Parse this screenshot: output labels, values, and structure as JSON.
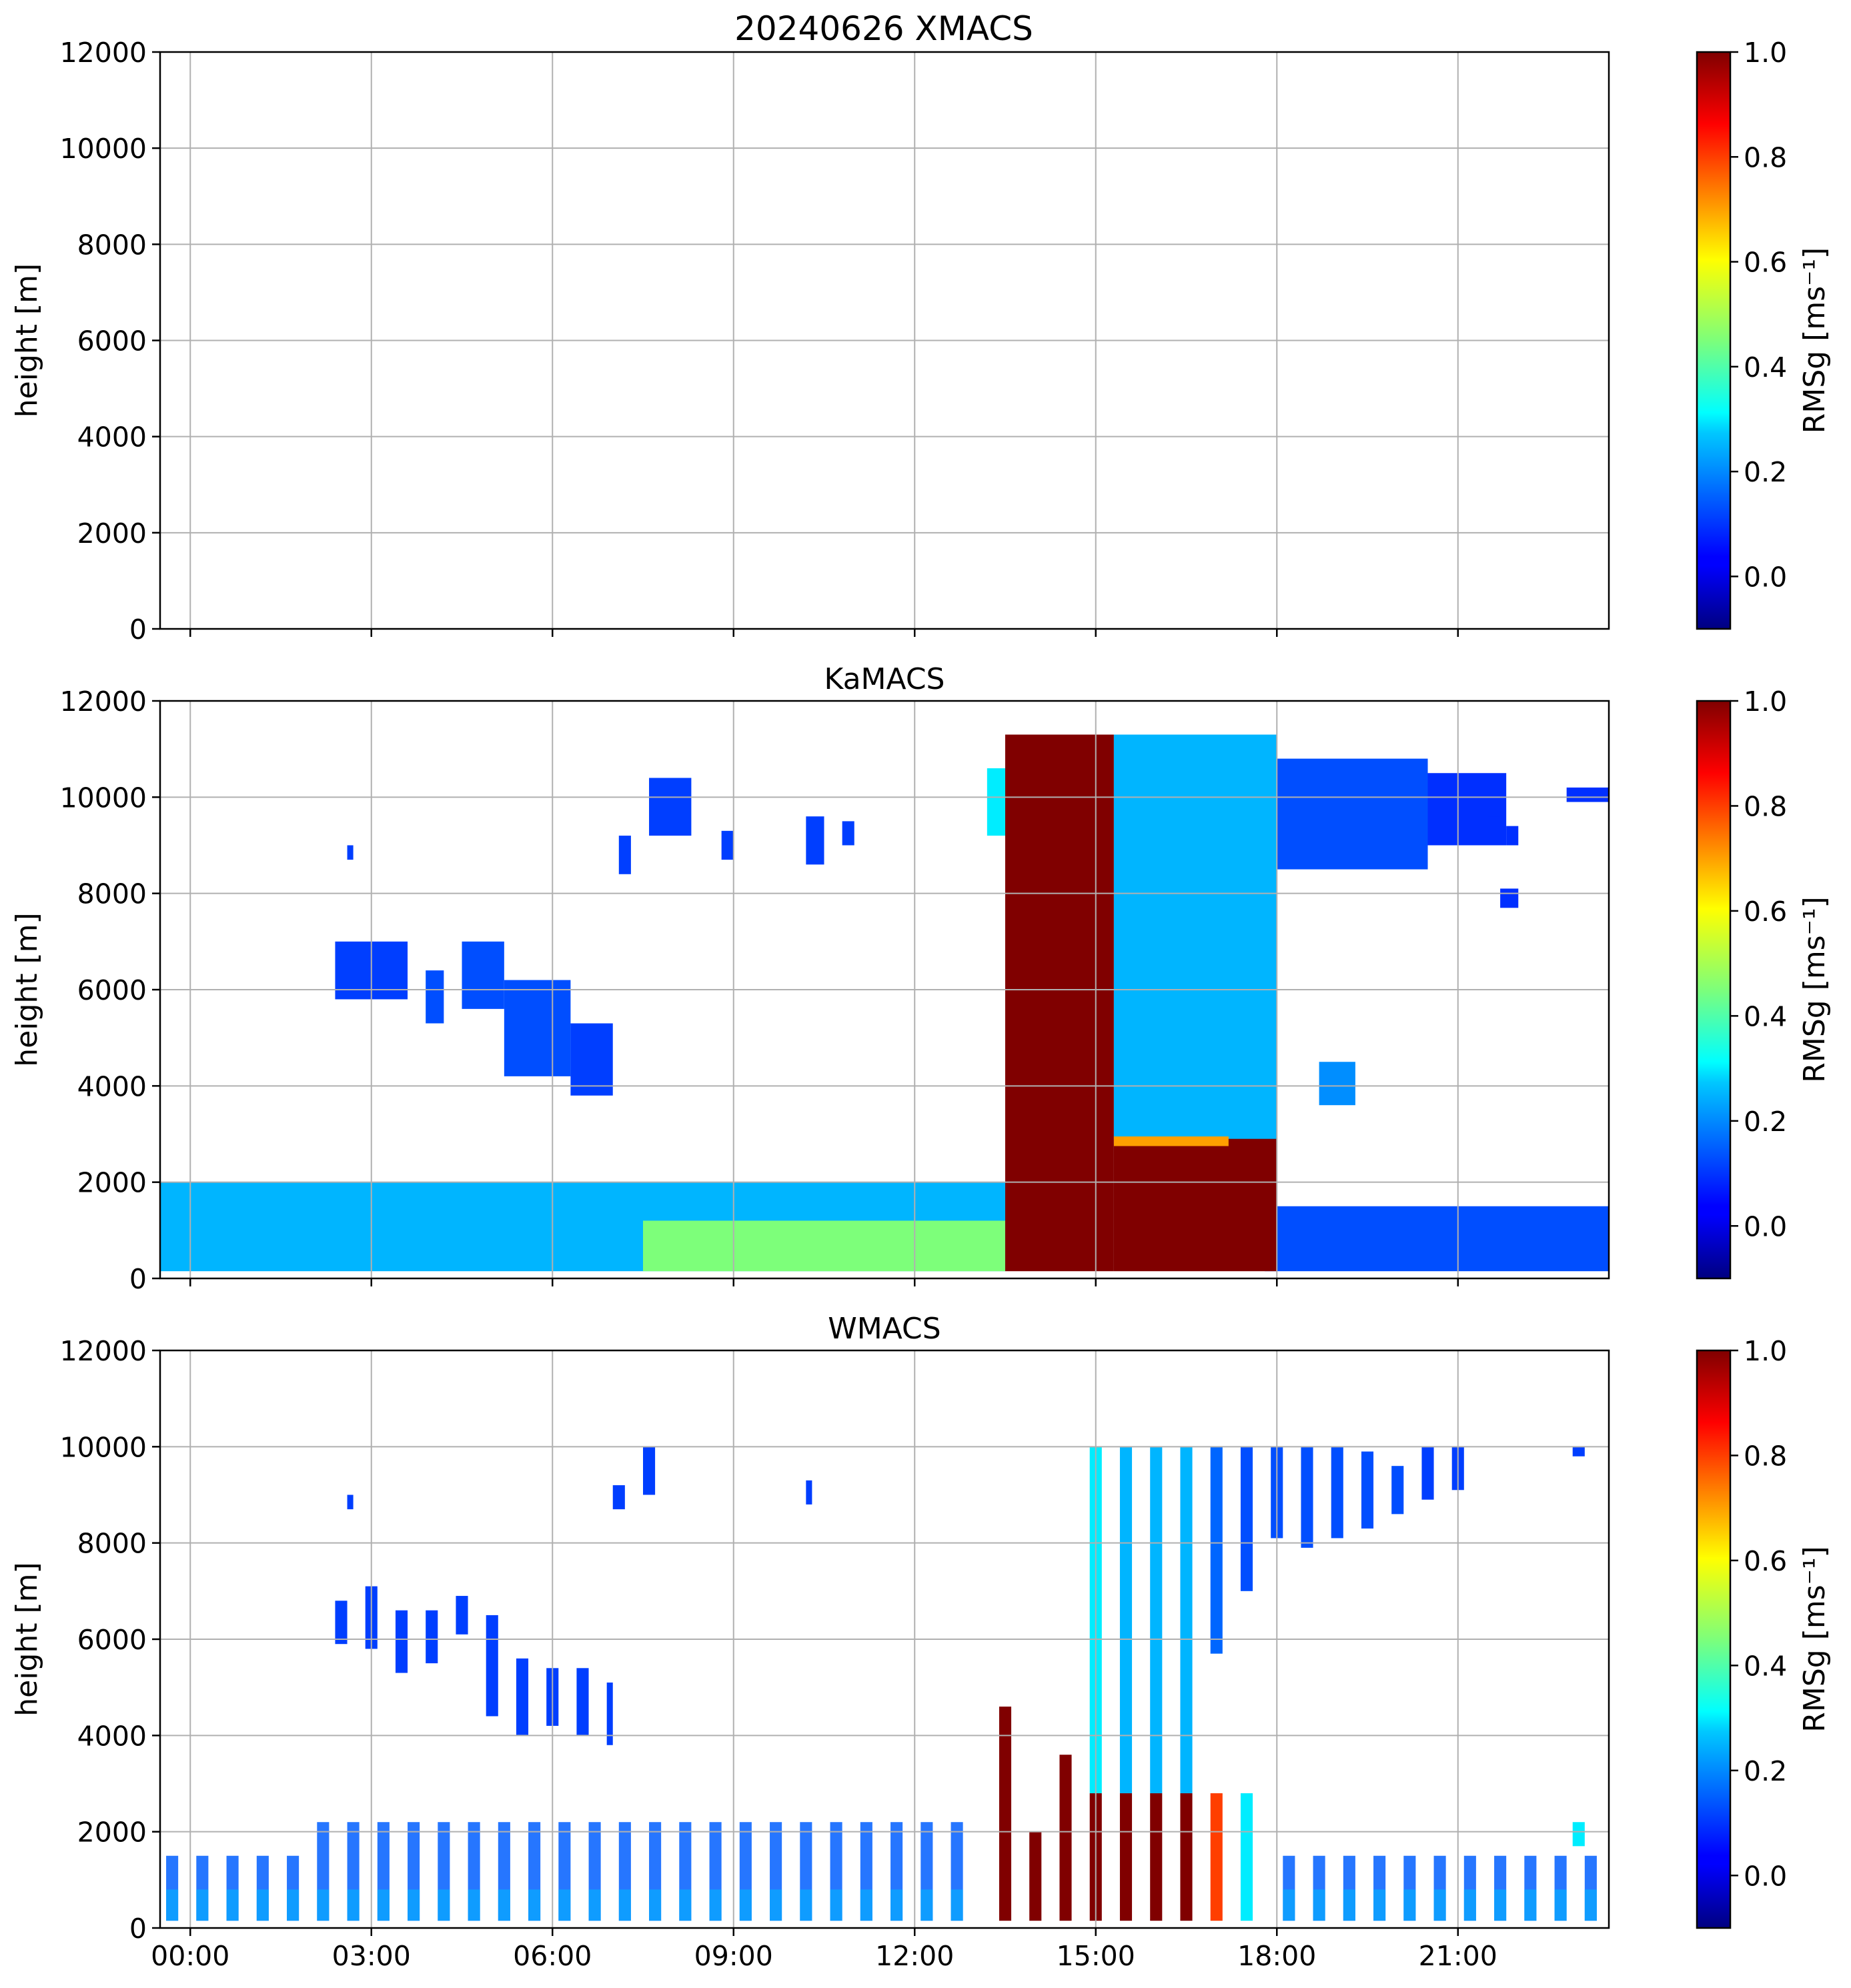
{
  "figure": {
    "suptitle": "20240626 XMACS"
  },
  "chart_data": [
    {
      "type": "heatmap",
      "title": "20240626 XMACS",
      "ylabel": "height [m]",
      "xlabel": "",
      "y_ticks": [
        "0",
        "2000",
        "4000",
        "6000",
        "8000",
        "10000",
        "12000"
      ],
      "x_ticks": [
        "00:00",
        "03:00",
        "06:00",
        "09:00",
        "12:00",
        "15:00",
        "18:00",
        "21:00"
      ],
      "xlim_hours": [
        -0.5,
        23.5
      ],
      "ylim": [
        0,
        12000
      ],
      "grid": true,
      "colorbar": {
        "label": "RMSg [ms⁻¹]",
        "ticks": [
          "0.0",
          "0.2",
          "0.4",
          "0.6",
          "0.8",
          "1.0"
        ],
        "vmin": -0.1,
        "vmax": 1.0,
        "cmap": "jet"
      },
      "regions": []
    },
    {
      "type": "heatmap",
      "title": "KaMACS",
      "ylabel": "height [m]",
      "xlabel": "",
      "y_ticks": [
        "0",
        "2000",
        "4000",
        "6000",
        "8000",
        "10000",
        "12000"
      ],
      "x_ticks": [
        "00:00",
        "03:00",
        "06:00",
        "09:00",
        "12:00",
        "15:00",
        "18:00",
        "21:00"
      ],
      "xlim_hours": [
        -0.5,
        23.5
      ],
      "ylim": [
        0,
        12000
      ],
      "grid": true,
      "colorbar": {
        "label": "RMSg [ms⁻¹]",
        "ticks": [
          "0.0",
          "0.2",
          "0.4",
          "0.6",
          "0.8",
          "1.0"
        ],
        "vmin": -0.1,
        "vmax": 1.0,
        "cmap": "jet"
      },
      "regions": [
        {
          "t0": -0.5,
          "t1": 13.5,
          "h0": 150,
          "h1": 2000,
          "value": 0.25
        },
        {
          "t0": 7.5,
          "t1": 13.5,
          "h0": 150,
          "h1": 1200,
          "value": 0.45
        },
        {
          "t0": 17.8,
          "t1": 23.5,
          "h0": 150,
          "h1": 1500,
          "value": 0.12
        },
        {
          "t0": 2.4,
          "t1": 3.6,
          "h0": 5800,
          "h1": 7000,
          "value": 0.1
        },
        {
          "t0": 3.9,
          "t1": 4.2,
          "h0": 5300,
          "h1": 6400,
          "value": 0.12
        },
        {
          "t0": 4.5,
          "t1": 5.2,
          "h0": 5600,
          "h1": 7000,
          "value": 0.12
        },
        {
          "t0": 5.2,
          "t1": 6.3,
          "h0": 4200,
          "h1": 6200,
          "value": 0.12
        },
        {
          "t0": 6.3,
          "t1": 7.0,
          "h0": 3800,
          "h1": 5300,
          "value": 0.1
        },
        {
          "t0": 7.6,
          "t1": 8.3,
          "h0": 9200,
          "h1": 10400,
          "value": 0.1
        },
        {
          "t0": 7.1,
          "t1": 7.3,
          "h0": 8400,
          "h1": 9200,
          "value": 0.1
        },
        {
          "t0": 8.8,
          "t1": 9.0,
          "h0": 8700,
          "h1": 9300,
          "value": 0.1
        },
        {
          "t0": 10.2,
          "t1": 10.5,
          "h0": 8600,
          "h1": 9600,
          "value": 0.1
        },
        {
          "t0": 10.8,
          "t1": 11.0,
          "h0": 9000,
          "h1": 9500,
          "value": 0.1
        },
        {
          "t0": 13.2,
          "t1": 13.5,
          "h0": 9200,
          "h1": 10600,
          "value": 0.3
        },
        {
          "t0": 13.5,
          "t1": 15.3,
          "h0": 150,
          "h1": 11300,
          "value": 1.0
        },
        {
          "t0": 15.3,
          "t1": 18.0,
          "h0": 2800,
          "h1": 11300,
          "value": 0.25
        },
        {
          "t0": 18.0,
          "t1": 20.5,
          "h0": 8500,
          "h1": 10800,
          "value": 0.12
        },
        {
          "t0": 20.5,
          "t1": 21.8,
          "h0": 9000,
          "h1": 10500,
          "value": 0.08
        },
        {
          "t0": 15.3,
          "t1": 18.0,
          "h0": 150,
          "h1": 2900,
          "value": 1.0
        },
        {
          "t0": 15.3,
          "t1": 17.2,
          "h0": 2750,
          "h1": 2950,
          "value": 0.7
        },
        {
          "t0": 18.7,
          "t1": 19.3,
          "h0": 3600,
          "h1": 4500,
          "value": 0.2
        },
        {
          "t0": 22.8,
          "t1": 23.5,
          "h0": 9900,
          "h1": 10200,
          "value": 0.08
        },
        {
          "t0": 21.5,
          "t1": 21.7,
          "h0": 9600,
          "h1": 10000,
          "value": 0.08
        },
        {
          "t0": 21.8,
          "t1": 22.0,
          "h0": 9000,
          "h1": 9400,
          "value": 0.08
        },
        {
          "t0": 21.7,
          "t1": 22.0,
          "h0": 7700,
          "h1": 8100,
          "value": 0.08
        },
        {
          "t0": 2.6,
          "t1": 2.7,
          "h0": 8700,
          "h1": 9000,
          "value": 0.1
        }
      ]
    },
    {
      "type": "heatmap",
      "title": "WMACS",
      "ylabel": "height [m]",
      "xlabel": "",
      "y_ticks": [
        "0",
        "2000",
        "4000",
        "6000",
        "8000",
        "10000",
        "12000"
      ],
      "x_ticks": [
        "00:00",
        "03:00",
        "06:00",
        "09:00",
        "12:00",
        "15:00",
        "18:00",
        "21:00"
      ],
      "xlim_hours": [
        -0.5,
        23.5
      ],
      "ylim": [
        0,
        12000
      ],
      "grid": true,
      "colorbar": {
        "label": "RMSg [ms⁻¹]",
        "ticks": [
          "0.0",
          "0.2",
          "0.4",
          "0.6",
          "0.8",
          "1.0"
        ],
        "vmin": -0.1,
        "vmax": 1.0,
        "cmap": "jet"
      },
      "regions": [
        {
          "t0": 13.4,
          "t1": 13.6,
          "h0": 150,
          "h1": 4600,
          "value": 1.0
        },
        {
          "t0": 13.9,
          "t1": 14.1,
          "h0": 150,
          "h1": 2000,
          "value": 1.0
        },
        {
          "t0": 14.4,
          "t1": 14.6,
          "h0": 150,
          "h1": 3600,
          "value": 1.0
        },
        {
          "t0": 14.9,
          "t1": 15.1,
          "h0": 150,
          "h1": 2800,
          "value": 1.0
        },
        {
          "t0": 14.9,
          "t1": 15.1,
          "h0": 2800,
          "h1": 10000,
          "value": 0.3
        },
        {
          "t0": 15.4,
          "t1": 15.6,
          "h0": 150,
          "h1": 2800,
          "value": 1.0
        },
        {
          "t0": 15.4,
          "t1": 15.6,
          "h0": 2800,
          "h1": 10000,
          "value": 0.25
        },
        {
          "t0": 15.9,
          "t1": 16.1,
          "h0": 150,
          "h1": 2800,
          "value": 1.0
        },
        {
          "t0": 15.9,
          "t1": 16.1,
          "h0": 2800,
          "h1": 10000,
          "value": 0.25
        },
        {
          "t0": 16.4,
          "t1": 16.6,
          "h0": 150,
          "h1": 2800,
          "value": 1.0
        },
        {
          "t0": 16.4,
          "t1": 16.6,
          "h0": 2800,
          "h1": 10000,
          "value": 0.25
        },
        {
          "t0": 16.9,
          "t1": 17.1,
          "h0": 150,
          "h1": 2800,
          "value": 0.8
        },
        {
          "t0": 16.9,
          "t1": 17.1,
          "h0": 5700,
          "h1": 10000,
          "value": 0.15
        },
        {
          "t0": 17.4,
          "t1": 17.6,
          "h0": 150,
          "h1": 2800,
          "value": 0.3
        },
        {
          "t0": 17.4,
          "t1": 17.6,
          "h0": 7000,
          "h1": 10000,
          "value": 0.12
        },
        {
          "t0": 17.9,
          "t1": 18.1,
          "h0": 8100,
          "h1": 10000,
          "value": 0.12
        },
        {
          "t0": 18.4,
          "t1": 18.6,
          "h0": 7900,
          "h1": 10000,
          "value": 0.12
        },
        {
          "t0": 18.9,
          "t1": 19.1,
          "h0": 8100,
          "h1": 10000,
          "value": 0.12
        },
        {
          "t0": 19.4,
          "t1": 19.6,
          "h0": 8300,
          "h1": 9900,
          "value": 0.12
        },
        {
          "t0": 19.9,
          "t1": 20.1,
          "h0": 8600,
          "h1": 9600,
          "value": 0.12
        },
        {
          "t0": 20.4,
          "t1": 20.6,
          "h0": 8900,
          "h1": 10000,
          "value": 0.1
        },
        {
          "t0": 20.9,
          "t1": 21.1,
          "h0": 9100,
          "h1": 10000,
          "value": 0.1
        },
        {
          "t0": 22.9,
          "t1": 23.1,
          "h0": 9800,
          "h1": 10000,
          "value": 0.1
        },
        {
          "t0": 7.5,
          "t1": 7.7,
          "h0": 9000,
          "h1": 10000,
          "value": 0.1
        },
        {
          "t0": 7.0,
          "t1": 7.2,
          "h0": 8700,
          "h1": 9200,
          "value": 0.1
        },
        {
          "t0": 2.4,
          "t1": 2.6,
          "h0": 5900,
          "h1": 6800,
          "value": 0.1
        },
        {
          "t0": 2.9,
          "t1": 3.1,
          "h0": 5800,
          "h1": 7100,
          "value": 0.1
        },
        {
          "t0": 3.4,
          "t1": 3.6,
          "h0": 5300,
          "h1": 6600,
          "value": 0.1
        },
        {
          "t0": 3.9,
          "t1": 4.1,
          "h0": 5500,
          "h1": 6600,
          "value": 0.1
        },
        {
          "t0": 4.4,
          "t1": 4.6,
          "h0": 6100,
          "h1": 6900,
          "value": 0.1
        },
        {
          "t0": 4.9,
          "t1": 5.1,
          "h0": 4400,
          "h1": 6500,
          "value": 0.1
        },
        {
          "t0": 5.4,
          "t1": 5.6,
          "h0": 4000,
          "h1": 5600,
          "value": 0.1
        },
        {
          "t0": 5.9,
          "t1": 6.1,
          "h0": 4200,
          "h1": 5400,
          "value": 0.1
        },
        {
          "t0": 6.4,
          "t1": 6.6,
          "h0": 4000,
          "h1": 5400,
          "value": 0.1
        },
        {
          "t0": 6.9,
          "t1": 7.0,
          "h0": 3800,
          "h1": 5100,
          "value": 0.1
        },
        {
          "t0": 10.2,
          "t1": 10.3,
          "h0": 8800,
          "h1": 9300,
          "value": 0.1
        },
        {
          "t0": 2.6,
          "t1": 2.7,
          "h0": 8700,
          "h1": 9000,
          "value": 0.1
        },
        {
          "t0": 22.9,
          "t1": 23.1,
          "h0": 1700,
          "h1": 2200,
          "value": 0.3
        }
      ],
      "strips": {
        "period_hours": 0.5,
        "width_hours": 0.2,
        "start_hours": -0.4,
        "ranges_hours": [
          [
            -0.5,
            13.0
          ],
          [
            18.0,
            23.5
          ]
        ]
      }
    }
  ]
}
